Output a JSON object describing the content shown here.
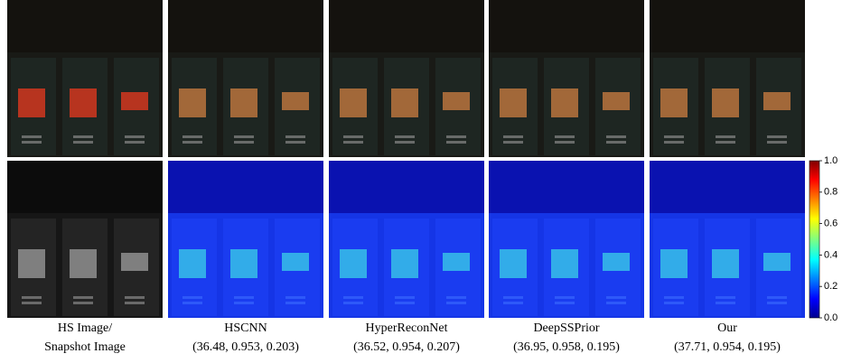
{
  "columns": [
    {
      "title": "HS Image/",
      "subtitle": "Snapshot Image"
    },
    {
      "title": "HSCNN",
      "subtitle": "(36.48, 0.953, 0.203)"
    },
    {
      "title": "HyperReconNet",
      "subtitle": "(36.52, 0.954, 0.207)"
    },
    {
      "title": "DeepSSPrior",
      "subtitle": "(36.95, 0.958, 0.195)"
    },
    {
      "title": "Our",
      "subtitle": "(37.71, 0.954, 0.195)"
    }
  ],
  "colorbar": {
    "lim": [
      0,
      1
    ],
    "ticks": [
      {
        "value": 0,
        "label": "0.0"
      },
      0.2,
      0.4,
      0.6,
      0.8,
      {
        "value": 1,
        "label": "1.0"
      }
    ]
  }
}
